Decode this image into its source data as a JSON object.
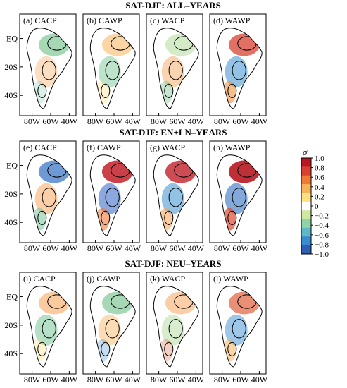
{
  "rows": [
    {
      "title": "SAT-DJF: ALL–YEARS",
      "panels": [
        {
          "label": "(a) CACP",
          "blobs": [
            [
              "#5fb878",
              0.55
            ],
            [
              "#f5a050",
              0.35
            ],
            [
              "#8fd3c0",
              0.35
            ]
          ]
        },
        {
          "label": "(b) CAWP",
          "blobs": [
            [
              "#f7b25a",
              0.55
            ],
            [
              "#6cc28f",
              0.45
            ],
            [
              "#ffe07a",
              0.35
            ]
          ]
        },
        {
          "label": "(c) WACP",
          "blobs": [
            [
              "#a8d890",
              0.5
            ],
            [
              "#f5a050",
              0.45
            ],
            [
              "#5fb878",
              0.35
            ]
          ]
        },
        {
          "label": "(d) WAWP",
          "blobs": [
            [
              "#d94030",
              0.75
            ],
            [
              "#3d8fd0",
              0.55
            ],
            [
              "#f3923c",
              0.6
            ]
          ]
        }
      ]
    },
    {
      "title": "SAT-DJF: EN+LN–YEARS",
      "panels": [
        {
          "label": "(e) CACP",
          "blobs": [
            [
              "#2f6fc2",
              0.7
            ],
            [
              "#f5a050",
              0.5
            ],
            [
              "#6cc28f",
              0.5
            ]
          ]
        },
        {
          "label": "(f) CAWP",
          "blobs": [
            [
              "#c2202a",
              0.85
            ],
            [
              "#3d70c8",
              0.6
            ],
            [
              "#f07a35",
              0.6
            ]
          ]
        },
        {
          "label": "(g) WACP",
          "blobs": [
            [
              "#c2202a",
              0.8
            ],
            [
              "#3d8fd0",
              0.55
            ],
            [
              "#f5a050",
              0.55
            ]
          ]
        },
        {
          "label": "(h) WAWP",
          "blobs": [
            [
              "#b81822",
              0.9
            ],
            [
              "#2f6fc2",
              0.6
            ],
            [
              "#e04a30",
              0.7
            ]
          ]
        }
      ]
    },
    {
      "title": "SAT-DJF: NEU–YEARS",
      "panels": [
        {
          "label": "(i) CACP",
          "blobs": [
            [
              "#f5a050",
              0.55
            ],
            [
              "#6cc28f",
              0.5
            ],
            [
              "#ffe07a",
              0.35
            ]
          ]
        },
        {
          "label": "(j) CAWP",
          "blobs": [
            [
              "#5fb878",
              0.55
            ],
            [
              "#f7b25a",
              0.45
            ],
            [
              "#3d8fd0",
              0.3
            ]
          ]
        },
        {
          "label": "(k) WACP",
          "blobs": [
            [
              "#f5a050",
              0.5
            ],
            [
              "#a8d890",
              0.45
            ],
            [
              "#e0603a",
              0.3
            ]
          ]
        },
        {
          "label": "(l) WAWP",
          "blobs": [
            [
              "#e0603a",
              0.7
            ],
            [
              "#3d8fd0",
              0.5
            ],
            [
              "#f7b25a",
              0.55
            ]
          ]
        }
      ]
    }
  ],
  "axis": {
    "y_ticks": [
      "EQ",
      "20S",
      "40S"
    ],
    "x_ticks": [
      "80W",
      "60W",
      "40W"
    ]
  },
  "colorbar": {
    "title": "σ",
    "ticks": [
      "1.0",
      "0.8",
      "0.6",
      "0.4",
      "0.2",
      "0",
      "−0.2",
      "−0.4",
      "−0.6",
      "−0.8",
      "−1.0"
    ],
    "colors": [
      "#2e5fb4",
      "#3a8cd0",
      "#5fb8c8",
      "#8fd3a8",
      "#cfeaa0",
      "#ffffff",
      "#ffe080",
      "#f7b25a",
      "#f07a35",
      "#d94030",
      "#b81822"
    ]
  }
}
